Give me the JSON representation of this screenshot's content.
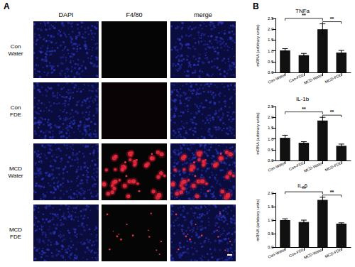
{
  "panel_a": {
    "label": "A",
    "columns": [
      "DAPI",
      "F4/80",
      "merge"
    ],
    "rows": [
      [
        "Con",
        "Water"
      ],
      [
        "Con",
        "FDE"
      ],
      [
        "MCD",
        "Water"
      ],
      [
        "MCD",
        "FDE"
      ]
    ]
  },
  "panel_b": {
    "label": "B"
  },
  "chart_data": [
    {
      "type": "bar",
      "title": "TNFa",
      "y_label": "mRNA (arbitrary units)",
      "categories": [
        "Con-Water",
        "Con-FDE",
        "MCD-Water",
        "MCD-FDE"
      ],
      "values": [
        1.02,
        0.8,
        2.0,
        0.92
      ],
      "errors": [
        0.08,
        0.08,
        0.25,
        0.1
      ],
      "color": "#111111",
      "ylim": [
        0,
        2.5
      ],
      "yticks": [
        {
          "value": 0,
          "label": "0.0"
        },
        {
          "value": 0.5,
          "label": "0.5"
        },
        {
          "value": 1,
          "label": "1.0"
        },
        {
          "value": 1.5,
          "label": "1.5"
        },
        {
          "value": 2,
          "label": "2.0"
        },
        {
          "value": 2.5,
          "label": "2.5"
        }
      ],
      "grid": false,
      "annotations": [
        {
          "text": "**",
          "from": "Con-Water",
          "to": "MCD-Water"
        },
        {
          "text": "**",
          "from": "MCD-Water",
          "to": "MCD-FDE"
        }
      ]
    },
    {
      "type": "bar",
      "title": "IL-1b",
      "y_label": "mRNA (arbitrary units)",
      "categories": [
        "Con-Water",
        "Con-FDE",
        "MCD-Water",
        "MCD-FDE"
      ],
      "values": [
        1.05,
        0.82,
        1.85,
        0.68
      ],
      "errors": [
        0.12,
        0.05,
        0.15,
        0.08
      ],
      "color": "#111111",
      "ylim": [
        0,
        2.5
      ],
      "yticks": [
        {
          "value": 0,
          "label": "0.0"
        },
        {
          "value": 0.5,
          "label": "0.5"
        },
        {
          "value": 1,
          "label": "1.0"
        },
        {
          "value": 1.5,
          "label": "1.5"
        },
        {
          "value": 2,
          "label": "2.0"
        },
        {
          "value": 2.5,
          "label": "2.5"
        }
      ],
      "grid": false,
      "annotations": [
        {
          "text": "**",
          "from": "Con-Water",
          "to": "MCD-Water"
        },
        {
          "text": "**",
          "from": "MCD-Water",
          "to": "MCD-FDE"
        }
      ]
    },
    {
      "type": "bar",
      "title": "IL-6",
      "y_label": "mRNA (arbitrary units)",
      "categories": [
        "Con-Water",
        "Con-FDE",
        "MCD-Water",
        "MCD-FDE"
      ],
      "values": [
        1.0,
        0.93,
        1.75,
        0.87
      ],
      "errors": [
        0.05,
        0.07,
        0.1,
        0.03
      ],
      "color": "#111111",
      "ylim": [
        0,
        2.0
      ],
      "yticks": [
        {
          "value": 0,
          "label": "0.0"
        },
        {
          "value": 0.5,
          "label": "0.5"
        },
        {
          "value": 1,
          "label": "1.0"
        },
        {
          "value": 1.5,
          "label": "1.5"
        },
        {
          "value": 2,
          "label": "2.0"
        }
      ],
      "grid": false,
      "annotations": [
        {
          "text": "**",
          "from": "Con-Water",
          "to": "MCD-Water"
        },
        {
          "text": "**",
          "from": "MCD-Water",
          "to": "MCD-FDE"
        }
      ]
    }
  ]
}
